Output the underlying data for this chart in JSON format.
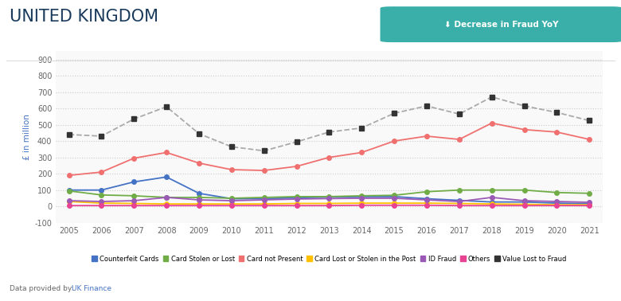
{
  "title": "UNITED KINGDOM",
  "title_color": "#1a3a5c",
  "badge_text": "⬇ Decrease in Fraud YoY",
  "badge_color": "#3aafa9",
  "ylabel": "£ in million",
  "ylabel_color": "#4472c4",
  "footnote_label": "Data provided by: ",
  "footnote_value": " UK Finance",
  "footnote_value_color": "#4472c4",
  "years": [
    2005,
    2006,
    2007,
    2008,
    2009,
    2010,
    2011,
    2012,
    2013,
    2014,
    2015,
    2016,
    2017,
    2018,
    2019,
    2020,
    2021
  ],
  "series": {
    "Counterfeit Cards": {
      "color": "#4472c4",
      "values": [
        100,
        100,
        150,
        180,
        80,
        47,
        47,
        53,
        57,
        60,
        60,
        47,
        37,
        27,
        27,
        20,
        17
      ]
    },
    "Card Stolen or Lost": {
      "color": "#70ad47",
      "values": [
        95,
        70,
        65,
        55,
        55,
        50,
        55,
        60,
        60,
        65,
        68,
        90,
        100,
        100,
        100,
        85,
        80
      ]
    },
    "Card not Present": {
      "color": "#f07070",
      "values": [
        190,
        210,
        295,
        330,
        265,
        225,
        220,
        245,
        300,
        330,
        400,
        430,
        410,
        510,
        470,
        455,
        410
      ]
    },
    "Card Lost or Stolen in the Post": {
      "color": "#ffc000",
      "values": [
        30,
        20,
        18,
        15,
        15,
        15,
        15,
        18,
        18,
        20,
        20,
        20,
        18,
        15,
        13,
        10,
        10
      ]
    },
    "ID Fraud": {
      "color": "#9b59b6",
      "values": [
        35,
        30,
        35,
        55,
        40,
        35,
        40,
        45,
        48,
        50,
        50,
        40,
        30,
        55,
        35,
        30,
        25
      ]
    },
    "Others": {
      "color": "#e84393",
      "values": [
        5,
        5,
        5,
        5,
        5,
        5,
        5,
        5,
        5,
        7,
        7,
        7,
        5,
        5,
        5,
        5,
        5
      ]
    },
    "Value Lost to Fraud": {
      "color": "#333333",
      "line_color": "#aaaaaa",
      "values": [
        440,
        430,
        535,
        610,
        445,
        365,
        340,
        395,
        455,
        480,
        570,
        615,
        565,
        670,
        615,
        575,
        525
      ]
    }
  },
  "ylim": [
    -100,
    950
  ],
  "yticks": [
    -100,
    0,
    100,
    200,
    300,
    400,
    500,
    600,
    700,
    800,
    900
  ],
  "bg_color": "#ffffff",
  "plot_bg_color": "#f9f9f9",
  "grid_color": "#cccccc",
  "separator_color": "#dddddd"
}
